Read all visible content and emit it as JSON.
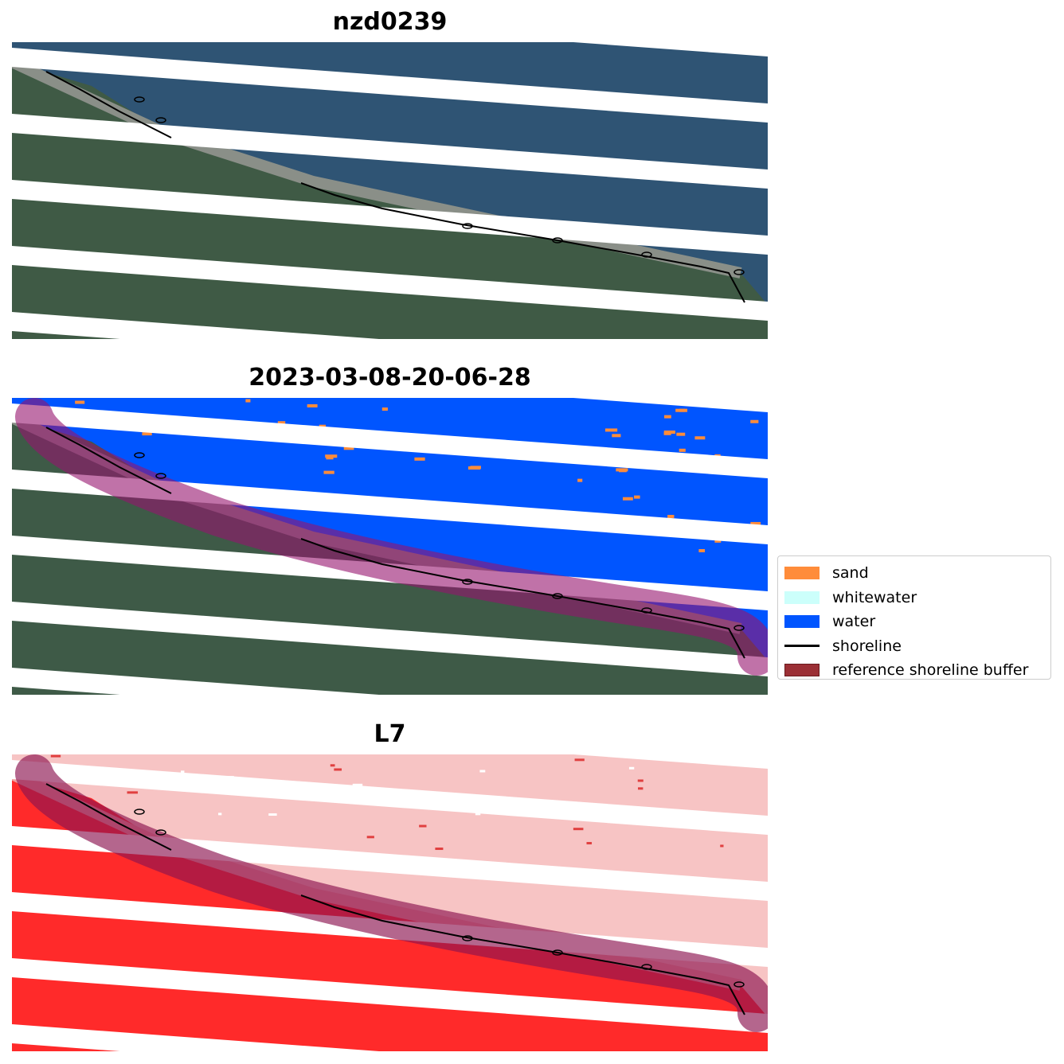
{
  "panels": [
    {
      "title": "nzd0239"
    },
    {
      "title": "2023-03-08-20-06-28"
    },
    {
      "title": "L7"
    }
  ],
  "legend": {
    "items": [
      {
        "label": "sand",
        "color": "#ff8c3a"
      },
      {
        "label": "whitewater",
        "color": "#ccfffb"
      },
      {
        "label": "water",
        "color": "#0055ff"
      },
      {
        "label": "shoreline",
        "color": "#000000"
      },
      {
        "label": "reference shoreline buffer",
        "color": "#9b2f35"
      }
    ]
  }
}
